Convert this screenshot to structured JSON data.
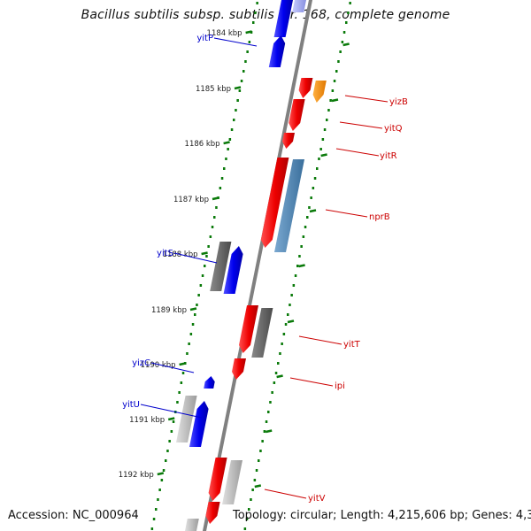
{
  "title": "Bacillus subtilis subsp. subtilis str. 168, complete genome",
  "footer": {
    "accession": "Accession: NC_000964",
    "topology": "Topology: circular; Length: 4,215,606 bp; Genes: 4,353"
  },
  "colors": {
    "backbone": "#808080",
    "tick": "#0a7a0a",
    "forward_label": "#0000cc",
    "reverse_label": "#cc0000",
    "red": "#ff0000",
    "blue": "#0000ff",
    "orange": "#ff8c00",
    "steelblue": "#4682b4",
    "darkgray": "#606060",
    "lightgray": "#b8b8b8"
  },
  "ruler": [
    {
      "label": "1184 kbp"
    },
    {
      "label": "1185 kbp"
    },
    {
      "label": "1186 kbp"
    },
    {
      "label": "1187 kbp"
    },
    {
      "label": "1188 kbp"
    },
    {
      "label": "1189 kbp"
    },
    {
      "label": "1190 kbp"
    },
    {
      "label": "1191 kbp"
    },
    {
      "label": "1192 kbp"
    }
  ],
  "gene_labels": [
    {
      "name": "yitP",
      "strand": "forward"
    },
    {
      "name": "yitS",
      "strand": "forward"
    },
    {
      "name": "yizC",
      "strand": "forward"
    },
    {
      "name": "yitU",
      "strand": "forward"
    },
    {
      "name": "yizB",
      "strand": "reverse"
    },
    {
      "name": "yitQ",
      "strand": "reverse"
    },
    {
      "name": "yitR",
      "strand": "reverse"
    },
    {
      "name": "nprB",
      "strand": "reverse"
    },
    {
      "name": "yitT",
      "strand": "reverse"
    },
    {
      "name": "ipi",
      "strand": "reverse"
    },
    {
      "name": "yitV",
      "strand": "reverse"
    }
  ]
}
